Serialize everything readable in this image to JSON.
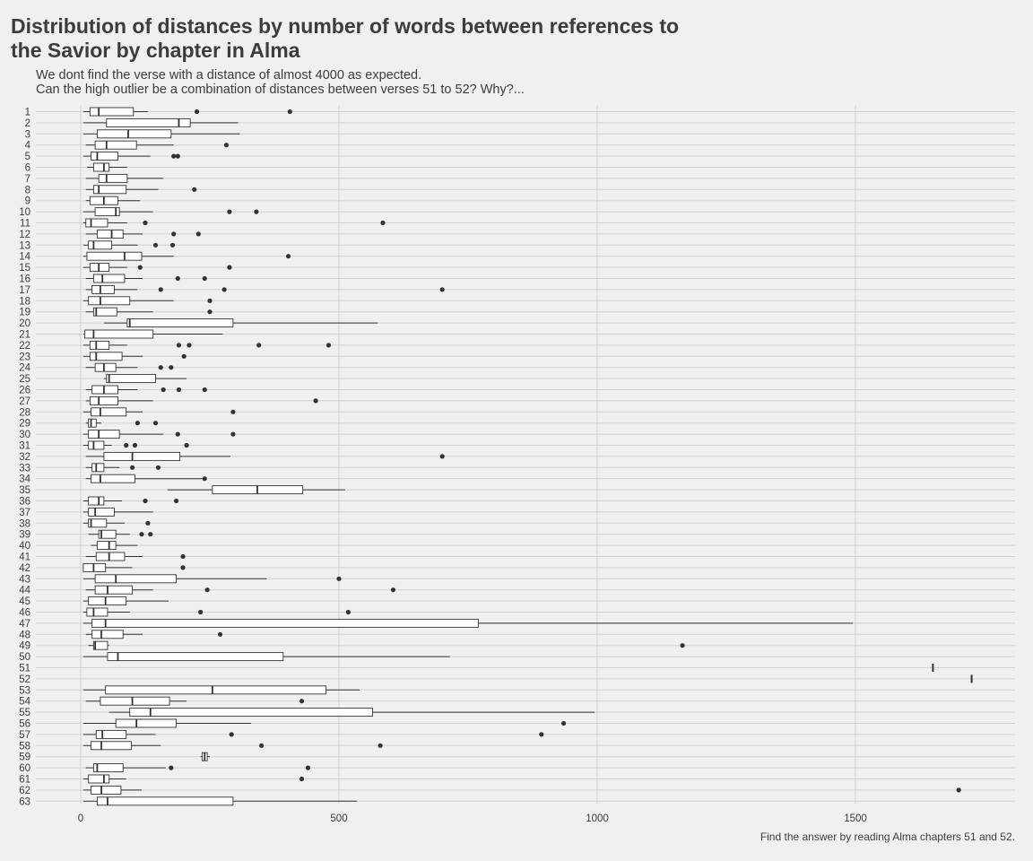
{
  "title": "Distribution of distances by number of words between references to\n the Savior by chapter in Alma",
  "subtitle": "We dont find the verse with a distance of almost 4000 as expected.\nCan the high outlier be a combination of distances between verses 51 to 52? Why?...",
  "caption": "Find the answer by reading Alma chapters 51 and 52.",
  "chart_data": {
    "type": "boxplot",
    "orientation": "horizontal",
    "xlabel": "",
    "ylabel": "",
    "xlim": [
      0,
      1800
    ],
    "x_ticks": [
      0,
      500,
      1000,
      1500
    ],
    "grid": true,
    "categories": [
      "1",
      "2",
      "3",
      "4",
      "5",
      "6",
      "7",
      "8",
      "9",
      "10",
      "11",
      "12",
      "13",
      "14",
      "15",
      "16",
      "17",
      "18",
      "19",
      "20",
      "21",
      "22",
      "23",
      "24",
      "25",
      "26",
      "27",
      "28",
      "29",
      "30",
      "31",
      "32",
      "33",
      "34",
      "35",
      "36",
      "37",
      "38",
      "39",
      "40",
      "41",
      "42",
      "43",
      "44",
      "45",
      "46",
      "47",
      "48",
      "49",
      "50",
      "51",
      "52",
      "53",
      "54",
      "55",
      "56",
      "57",
      "58",
      "59",
      "60",
      "61",
      "62",
      "63"
    ],
    "boxes": [
      {
        "min": 5,
        "q1": 18,
        "median": 35,
        "q3": 102,
        "max": 130,
        "outliers": [
          225,
          405
        ]
      },
      {
        "min": 5,
        "q1": 50,
        "median": 190,
        "q3": 212,
        "max": 305,
        "outliers": []
      },
      {
        "min": 5,
        "q1": 32,
        "median": 92,
        "q3": 175,
        "max": 308,
        "outliers": []
      },
      {
        "min": 10,
        "q1": 28,
        "median": 50,
        "q3": 108,
        "max": 180,
        "outliers": [
          282
        ]
      },
      {
        "min": 5,
        "q1": 20,
        "median": 32,
        "q3": 72,
        "max": 135,
        "outliers": [
          180,
          188
        ]
      },
      {
        "min": 12,
        "q1": 25,
        "median": 45,
        "q3": 55,
        "max": 90,
        "outliers": []
      },
      {
        "min": 10,
        "q1": 35,
        "median": 50,
        "q3": 90,
        "max": 160,
        "outliers": []
      },
      {
        "min": 10,
        "q1": 25,
        "median": 35,
        "q3": 88,
        "max": 150,
        "outliers": [
          220
        ]
      },
      {
        "min": 10,
        "q1": 18,
        "median": 45,
        "q3": 72,
        "max": 115,
        "outliers": []
      },
      {
        "min": 5,
        "q1": 28,
        "median": 68,
        "q3": 75,
        "max": 140,
        "outliers": [
          288,
          340
        ]
      },
      {
        "min": 5,
        "q1": 10,
        "median": 20,
        "q3": 52,
        "max": 90,
        "outliers": [
          125,
          585
        ]
      },
      {
        "min": 10,
        "q1": 32,
        "median": 60,
        "q3": 82,
        "max": 120,
        "outliers": [
          180,
          228
        ]
      },
      {
        "min": 5,
        "q1": 15,
        "median": 25,
        "q3": 60,
        "max": 110,
        "outliers": [
          145,
          178
        ]
      },
      {
        "min": 5,
        "q1": 12,
        "median": 85,
        "q3": 118,
        "max": 180,
        "outliers": [
          402
        ]
      },
      {
        "min": 5,
        "q1": 18,
        "median": 35,
        "q3": 55,
        "max": 90,
        "outliers": [
          115,
          288
        ]
      },
      {
        "min": 10,
        "q1": 25,
        "median": 42,
        "q3": 85,
        "max": 120,
        "outliers": [
          188,
          240
        ]
      },
      {
        "min": 10,
        "q1": 22,
        "median": 38,
        "q3": 65,
        "max": 110,
        "outliers": [
          155,
          278,
          700
        ]
      },
      {
        "min": 5,
        "q1": 15,
        "median": 38,
        "q3": 95,
        "max": 180,
        "outliers": [
          250
        ]
      },
      {
        "min": 10,
        "q1": 25,
        "median": 30,
        "q3": 70,
        "max": 140,
        "outliers": [
          250
        ]
      },
      {
        "min": 45,
        "q1": 90,
        "median": 95,
        "q3": 295,
        "max": 575,
        "outliers": []
      },
      {
        "min": 5,
        "q1": 8,
        "median": 25,
        "q3": 140,
        "max": 275,
        "outliers": []
      },
      {
        "min": 5,
        "q1": 18,
        "median": 30,
        "q3": 55,
        "max": 90,
        "outliers": [
          190,
          210,
          345,
          480
        ]
      },
      {
        "min": 5,
        "q1": 18,
        "median": 30,
        "q3": 80,
        "max": 120,
        "outliers": [
          200
        ]
      },
      {
        "min": 10,
        "q1": 28,
        "median": 45,
        "q3": 68,
        "max": 110,
        "outliers": [
          155,
          175
        ]
      },
      {
        "min": 45,
        "q1": 50,
        "median": 55,
        "q3": 145,
        "max": 205,
        "outliers": []
      },
      {
        "min": 10,
        "q1": 22,
        "median": 45,
        "q3": 72,
        "max": 110,
        "outliers": [
          160,
          190,
          240
        ]
      },
      {
        "min": 10,
        "q1": 18,
        "median": 35,
        "q3": 72,
        "max": 140,
        "outliers": [
          455
        ]
      },
      {
        "min": 5,
        "q1": 20,
        "median": 38,
        "q3": 88,
        "max": 120,
        "outliers": [
          295
        ]
      },
      {
        "min": 10,
        "q1": 15,
        "median": 20,
        "q3": 30,
        "max": 40,
        "outliers": [
          110,
          145
        ]
      },
      {
        "min": 5,
        "q1": 15,
        "median": 35,
        "q3": 75,
        "max": 160,
        "outliers": [
          188,
          295
        ]
      },
      {
        "min": 5,
        "q1": 15,
        "median": 25,
        "q3": 45,
        "max": 60,
        "outliers": [
          88,
          105,
          205
        ]
      },
      {
        "min": 10,
        "q1": 45,
        "median": 100,
        "q3": 192,
        "max": 290,
        "outliers": [
          700
        ]
      },
      {
        "min": 10,
        "q1": 22,
        "median": 30,
        "q3": 45,
        "max": 75,
        "outliers": [
          100,
          150
        ]
      },
      {
        "min": 10,
        "q1": 20,
        "median": 38,
        "q3": 105,
        "max": 240,
        "outliers": [
          240
        ]
      },
      {
        "min": 168,
        "q1": 255,
        "median": 342,
        "q3": 430,
        "max": 512,
        "outliers": []
      },
      {
        "min": 5,
        "q1": 15,
        "median": 35,
        "q3": 45,
        "max": 80,
        "outliers": [
          125,
          185
        ]
      },
      {
        "min": 5,
        "q1": 15,
        "median": 28,
        "q3": 65,
        "max": 140,
        "outliers": []
      },
      {
        "min": 5,
        "q1": 15,
        "median": 20,
        "q3": 50,
        "max": 85,
        "outliers": [
          130
        ]
      },
      {
        "min": 15,
        "q1": 35,
        "median": 40,
        "q3": 68,
        "max": 95,
        "outliers": [
          118,
          135
        ]
      },
      {
        "min": 20,
        "q1": 32,
        "median": 55,
        "q3": 68,
        "max": 110,
        "outliers": []
      },
      {
        "min": 10,
        "q1": 30,
        "median": 55,
        "q3": 85,
        "max": 120,
        "outliers": [
          198
        ]
      },
      {
        "min": 5,
        "q1": 5,
        "median": 25,
        "q3": 48,
        "max": 100,
        "outliers": [
          198
        ]
      },
      {
        "min": 5,
        "q1": 28,
        "median": 68,
        "q3": 185,
        "max": 360,
        "outliers": [
          500
        ]
      },
      {
        "min": 10,
        "q1": 28,
        "median": 52,
        "q3": 100,
        "max": 140,
        "outliers": [
          245,
          605
        ]
      },
      {
        "min": 5,
        "q1": 15,
        "median": 48,
        "q3": 88,
        "max": 170,
        "outliers": []
      },
      {
        "min": 5,
        "q1": 12,
        "median": 25,
        "q3": 52,
        "max": 95,
        "outliers": [
          232,
          518
        ]
      },
      {
        "min": 5,
        "q1": 22,
        "median": 48,
        "q3": 770,
        "max": 1495,
        "outliers": []
      },
      {
        "min": 10,
        "q1": 22,
        "median": 40,
        "q3": 82,
        "max": 120,
        "outliers": [
          270
        ]
      },
      {
        "min": 15,
        "q1": 25,
        "median": 28,
        "q3": 52,
        "max": 55,
        "outliers": [
          1165
        ]
      },
      {
        "min": 5,
        "q1": 52,
        "median": 72,
        "q3": 392,
        "max": 715,
        "outliers": []
      },
      {
        "min": 1650,
        "q1": 1650,
        "median": 1650,
        "q3": 1650,
        "max": 1650,
        "outliers": []
      },
      {
        "min": 1725,
        "q1": 1725,
        "median": 1725,
        "q3": 1725,
        "max": 1725,
        "outliers": []
      },
      {
        "min": 5,
        "q1": 48,
        "median": 255,
        "q3": 475,
        "max": 540,
        "outliers": []
      },
      {
        "min": 10,
        "q1": 38,
        "median": 100,
        "q3": 172,
        "max": 205,
        "outliers": [
          428
        ]
      },
      {
        "min": 55,
        "q1": 95,
        "median": 135,
        "q3": 565,
        "max": 995,
        "outliers": []
      },
      {
        "min": 5,
        "q1": 68,
        "median": 108,
        "q3": 185,
        "max": 330,
        "outliers": [
          935
        ]
      },
      {
        "min": 5,
        "q1": 30,
        "median": 42,
        "q3": 88,
        "max": 145,
        "outliers": [
          292,
          892
        ]
      },
      {
        "min": 5,
        "q1": 20,
        "median": 40,
        "q3": 98,
        "max": 155,
        "outliers": [
          350,
          580
        ]
      },
      {
        "min": 232,
        "q1": 235,
        "median": 240,
        "q3": 245,
        "max": 250,
        "outliers": []
      },
      {
        "min": 10,
        "q1": 25,
        "median": 32,
        "q3": 82,
        "max": 165,
        "outliers": [
          175,
          440
        ]
      },
      {
        "min": 5,
        "q1": 15,
        "median": 45,
        "q3": 55,
        "max": 88,
        "outliers": [
          428
        ]
      },
      {
        "min": 5,
        "q1": 20,
        "median": 40,
        "q3": 78,
        "max": 118,
        "outliers": [
          1700
        ]
      },
      {
        "min": 5,
        "q1": 32,
        "median": 52,
        "q3": 295,
        "max": 535,
        "outliers": []
      }
    ]
  },
  "colors": {
    "background": "#f0f0f0",
    "grid": "#d2d2d2",
    "box_fill": "#ffffff",
    "line": "#333333",
    "text": "#3c3c3c"
  }
}
